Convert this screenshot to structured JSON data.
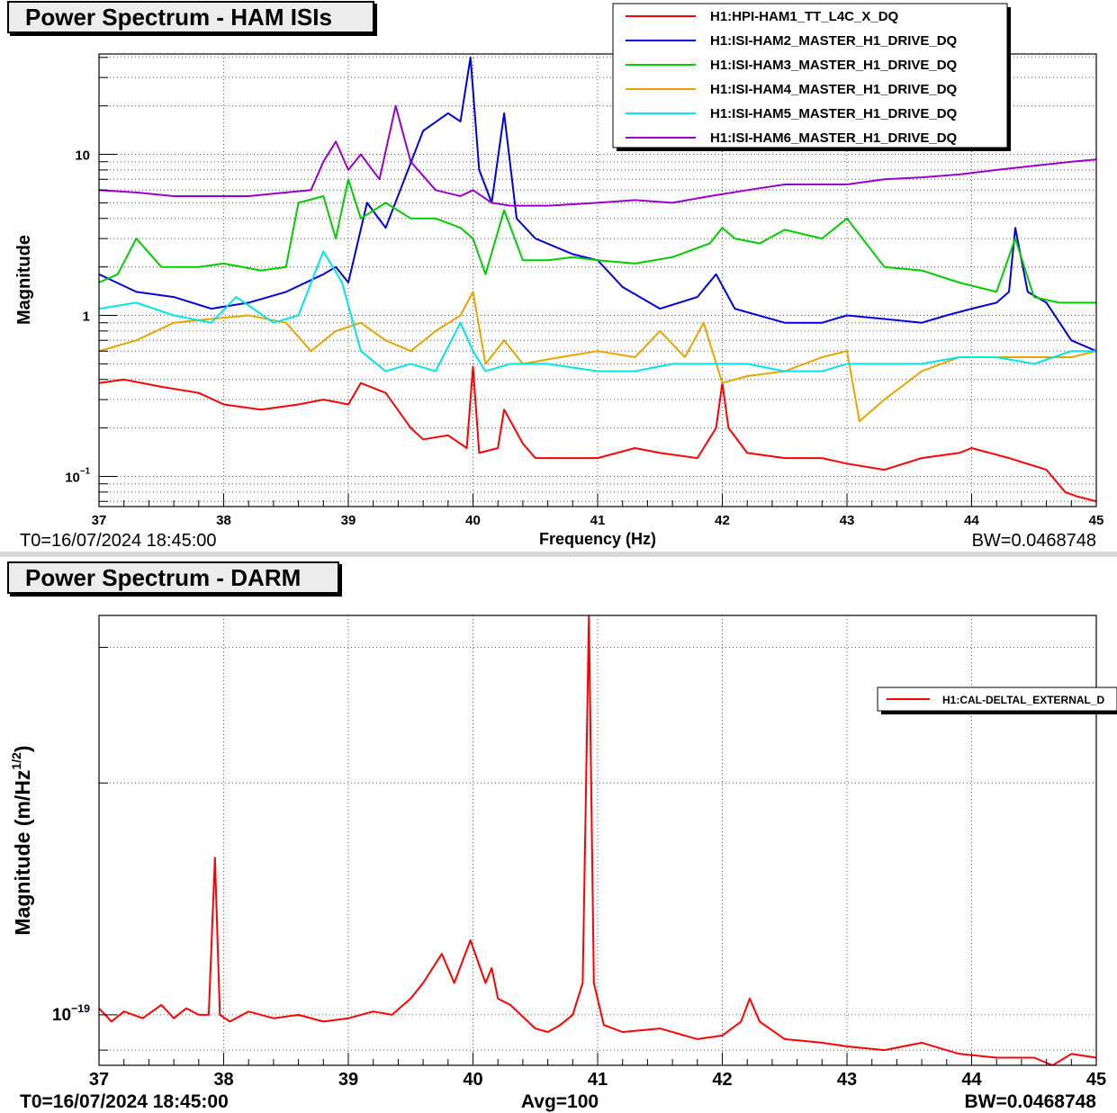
{
  "panels": [
    {
      "title": "Power Spectrum - HAM ISIs",
      "t0": "T0=16/07/2024 18:45:00",
      "bw": "BW=0.0468748",
      "xlabel": "Frequency (Hz)",
      "ylabel": "Magnitude"
    },
    {
      "title": "Power Spectrum - DARM",
      "t0": "T0=16/07/2024 18:45:00",
      "bw": "BW=0.0468748",
      "avg": "Avg=100",
      "xlabel": "",
      "ylabel": "Magnitude (m/Hz",
      "ylabel_sup": "1/2",
      "ylabel_tail": ")"
    }
  ],
  "chart_data": [
    {
      "type": "line",
      "title": "Power Spectrum - HAM ISIs",
      "xlabel": "Frequency (Hz)",
      "ylabel": "Magnitude",
      "xlim": [
        37,
        45
      ],
      "ylim": [
        0.065,
        42
      ],
      "yscale": "log",
      "grid": true,
      "legend": "top-right",
      "x_ticks": [
        "37",
        "38",
        "39",
        "40",
        "41",
        "42",
        "43",
        "44",
        "45"
      ],
      "y_ticks": [
        {
          "v": 0.1,
          "label": "10",
          "sup": "−1"
        },
        {
          "v": 1,
          "label": "1",
          "sup": ""
        },
        {
          "v": 10,
          "label": "10",
          "sup": ""
        }
      ],
      "series": [
        {
          "name": "H1:HPI-HAM1_TT_L4C_X_DQ",
          "color": "#ff0000",
          "x": [
            37,
            37.2,
            37.5,
            37.8,
            38,
            38.3,
            38.6,
            38.8,
            39,
            39.1,
            39.3,
            39.5,
            39.6,
            39.8,
            39.95,
            40,
            40.05,
            40.2,
            40.25,
            40.4,
            40.5,
            40.7,
            41,
            41.3,
            41.5,
            41.8,
            41.95,
            42,
            42.05,
            42.2,
            42.5,
            42.8,
            43,
            43.3,
            43.6,
            43.9,
            44,
            44.3,
            44.6,
            44.75,
            44.85,
            45
          ],
          "y": [
            0.38,
            0.4,
            0.36,
            0.33,
            0.28,
            0.26,
            0.28,
            0.3,
            0.28,
            0.38,
            0.33,
            0.2,
            0.17,
            0.18,
            0.15,
            0.48,
            0.14,
            0.15,
            0.26,
            0.16,
            0.13,
            0.13,
            0.13,
            0.15,
            0.14,
            0.13,
            0.2,
            0.38,
            0.2,
            0.14,
            0.13,
            0.13,
            0.12,
            0.11,
            0.13,
            0.14,
            0.15,
            0.13,
            0.11,
            0.08,
            0.075,
            0.07
          ]
        },
        {
          "name": "H1:ISI-HAM2_MASTER_H1_DRIVE_DQ",
          "color": "#0000dd",
          "x": [
            37,
            37.3,
            37.6,
            37.9,
            38.2,
            38.5,
            38.8,
            38.9,
            39,
            39.15,
            39.3,
            39.45,
            39.6,
            39.8,
            39.9,
            39.98,
            40.05,
            40.15,
            40.25,
            40.35,
            40.5,
            40.8,
            41,
            41.2,
            41.5,
            41.8,
            41.95,
            42.1,
            42.5,
            42.8,
            43,
            43.3,
            43.6,
            43.8,
            44,
            44.2,
            44.3,
            44.35,
            44.45,
            44.6,
            44.8,
            45
          ],
          "y": [
            1.8,
            1.4,
            1.3,
            1.1,
            1.2,
            1.4,
            1.8,
            2,
            1.6,
            5,
            3.5,
            7,
            14,
            18,
            16,
            40,
            8,
            5,
            18,
            4,
            3,
            2.4,
            2.2,
            1.5,
            1.1,
            1.3,
            1.8,
            1.1,
            0.9,
            0.9,
            1,
            0.95,
            0.9,
            1,
            1.1,
            1.2,
            1.4,
            3.5,
            1.4,
            1.2,
            0.7,
            0.6
          ]
        },
        {
          "name": "H1:ISI-HAM3_MASTER_H1_DRIVE_DQ",
          "color": "#00cc00",
          "x": [
            37,
            37.15,
            37.3,
            37.5,
            37.8,
            38,
            38.3,
            38.5,
            38.6,
            38.8,
            38.9,
            39,
            39.1,
            39.3,
            39.5,
            39.7,
            39.9,
            40,
            40.1,
            40.25,
            40.4,
            40.6,
            40.8,
            41,
            41.3,
            41.6,
            41.9,
            42,
            42.1,
            42.3,
            42.5,
            42.8,
            43,
            43.3,
            43.6,
            43.9,
            44.2,
            44.35,
            44.5,
            44.7,
            45
          ],
          "y": [
            1.6,
            1.8,
            3,
            2,
            2,
            2.1,
            1.9,
            2,
            5,
            5.5,
            3,
            7,
            4,
            5,
            4,
            4,
            3.5,
            3,
            1.8,
            4.5,
            2.2,
            2.2,
            2.3,
            2.2,
            2.1,
            2.3,
            2.8,
            3.5,
            3,
            2.8,
            3.4,
            3,
            4,
            2,
            1.9,
            1.6,
            1.4,
            3,
            1.3,
            1.2,
            1.2
          ]
        },
        {
          "name": "H1:ISI-HAM4_MASTER_H1_DRIVE_DQ",
          "color": "#e6a400",
          "x": [
            37,
            37.3,
            37.6,
            37.9,
            38.2,
            38.5,
            38.7,
            38.9,
            39.1,
            39.3,
            39.5,
            39.7,
            39.9,
            40,
            40.1,
            40.25,
            40.4,
            40.7,
            41,
            41.3,
            41.5,
            41.7,
            41.85,
            42,
            42.2,
            42.5,
            42.8,
            43,
            43.1,
            43.3,
            43.6,
            43.9,
            44.2,
            44.5,
            44.8,
            45
          ],
          "y": [
            0.6,
            0.7,
            0.9,
            0.95,
            1,
            0.9,
            0.6,
            0.8,
            0.9,
            0.7,
            0.6,
            0.8,
            1,
            1.4,
            0.5,
            0.7,
            0.5,
            0.55,
            0.6,
            0.55,
            0.8,
            0.55,
            0.9,
            0.38,
            0.42,
            0.45,
            0.55,
            0.6,
            0.22,
            0.3,
            0.45,
            0.55,
            0.55,
            0.55,
            0.55,
            0.6
          ]
        },
        {
          "name": "H1:ISI-HAM5_MASTER_H1_DRIVE_DQ",
          "color": "#00e5e5",
          "x": [
            37,
            37.3,
            37.6,
            37.9,
            38.1,
            38.4,
            38.6,
            38.8,
            38.95,
            39.1,
            39.3,
            39.5,
            39.7,
            39.9,
            40,
            40.1,
            40.3,
            40.6,
            41,
            41.3,
            41.6,
            41.9,
            42.2,
            42.5,
            42.8,
            43,
            43.3,
            43.6,
            43.9,
            44.2,
            44.5,
            44.8,
            45
          ],
          "y": [
            1.1,
            1.2,
            1,
            0.9,
            1.3,
            0.9,
            1,
            2.5,
            1.6,
            0.6,
            0.45,
            0.5,
            0.45,
            0.9,
            0.6,
            0.45,
            0.5,
            0.5,
            0.45,
            0.45,
            0.5,
            0.5,
            0.5,
            0.45,
            0.45,
            0.5,
            0.5,
            0.5,
            0.55,
            0.55,
            0.5,
            0.6,
            0.6
          ]
        },
        {
          "name": "H1:ISI-HAM6_MASTER_H1_DRIVE_DQ",
          "color": "#9900cc",
          "x": [
            37,
            37.3,
            37.6,
            37.9,
            38.2,
            38.5,
            38.7,
            38.8,
            38.9,
            39,
            39.1,
            39.25,
            39.38,
            39.5,
            39.7,
            39.9,
            40,
            40.15,
            40.3,
            40.6,
            41,
            41.3,
            41.6,
            41.9,
            42.2,
            42.5,
            42.8,
            43,
            43.3,
            43.6,
            43.9,
            44.2,
            44.5,
            44.8,
            45
          ],
          "y": [
            6,
            5.8,
            5.5,
            5.5,
            5.5,
            5.8,
            6,
            9,
            12,
            8,
            10,
            7,
            20,
            9,
            6,
            5.5,
            6,
            5,
            4.8,
            4.8,
            5,
            5.2,
            5,
            5.5,
            6,
            6.5,
            6.5,
            6.5,
            7,
            7.2,
            7.5,
            8,
            8.5,
            9,
            9.3
          ]
        }
      ]
    },
    {
      "type": "line",
      "title": "Power Spectrum - DARM",
      "xlabel": "",
      "ylabel": "Magnitude (m/Hz1/2)",
      "xlim": [
        37,
        45
      ],
      "ylim": [
        8.6e-20,
        3.3e-19
      ],
      "yscale": "log",
      "grid": true,
      "legend": "right",
      "x_ticks": [
        "37",
        "38",
        "39",
        "40",
        "41",
        "42",
        "43",
        "44",
        "45"
      ],
      "y_ticks": [
        {
          "v": 1e-19,
          "label": "10",
          "sup": "−19"
        }
      ],
      "series": [
        {
          "name": "H1:CAL-DELTAL_EXTERNAL_D",
          "color": "#ff0000",
          "x": [
            37,
            37.1,
            37.2,
            37.35,
            37.5,
            37.6,
            37.7,
            37.8,
            37.88,
            37.93,
            37.97,
            38.05,
            38.2,
            38.4,
            38.6,
            38.8,
            39,
            39.2,
            39.35,
            39.5,
            39.6,
            39.75,
            39.85,
            39.98,
            40.1,
            40.15,
            40.2,
            40.3,
            40.5,
            40.6,
            40.7,
            40.8,
            40.88,
            40.93,
            40.97,
            41.05,
            41.2,
            41.5,
            41.8,
            42,
            42.15,
            42.22,
            42.3,
            42.5,
            42.8,
            43,
            43.3,
            43.6,
            43.9,
            44.2,
            44.5,
            44.65,
            44.8,
            45
          ],
          "y": [
            1.02e-19,
            9.8e-20,
            1.01e-19,
            9.9e-20,
            1.03e-19,
            9.9e-20,
            1.02e-19,
            1e-19,
            1e-19,
            1.6e-19,
            1e-19,
            9.8e-20,
            1.01e-19,
            9.9e-20,
            1e-19,
            9.8e-20,
            9.9e-20,
            1.01e-19,
            1e-19,
            1.05e-19,
            1.1e-19,
            1.2e-19,
            1.1e-19,
            1.25e-19,
            1.1e-19,
            1.15e-19,
            1.05e-19,
            1.03e-19,
            9.6e-20,
            9.5e-20,
            9.7e-20,
            1e-19,
            1.1e-19,
            3.3e-19,
            1.1e-19,
            9.7e-20,
            9.5e-20,
            9.6e-20,
            9.3e-20,
            9.4e-20,
            9.8e-20,
            1.05e-19,
            9.8e-20,
            9.3e-20,
            9.2e-20,
            9.1e-20,
            9e-20,
            9.2e-20,
            8.9e-20,
            8.8e-20,
            8.8e-20,
            8.6e-20,
            8.9e-20,
            8.8e-20
          ]
        }
      ]
    }
  ]
}
